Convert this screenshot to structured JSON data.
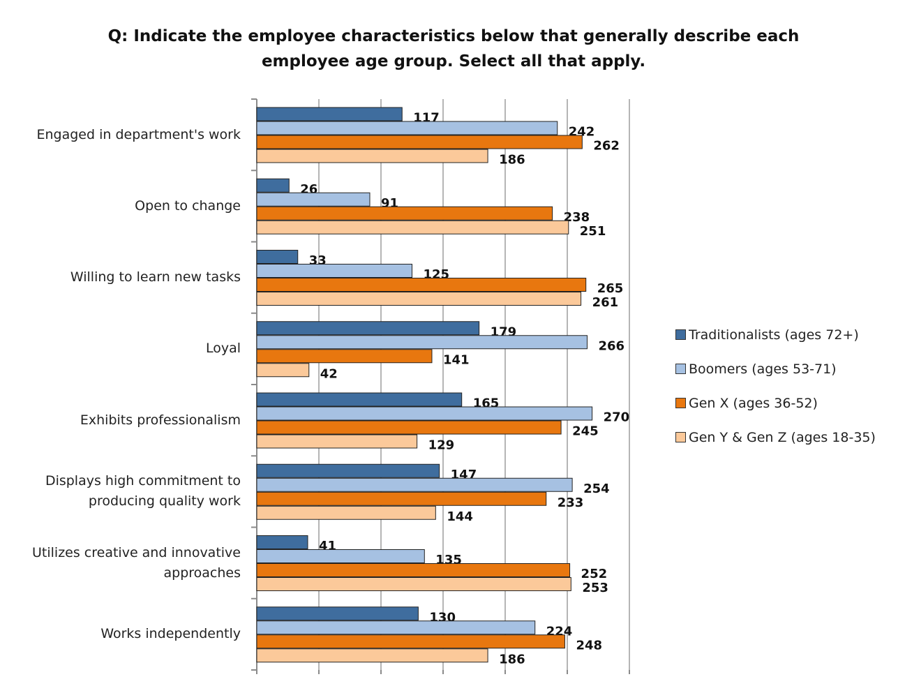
{
  "chart_data": {
    "type": "bar",
    "orientation": "horizontal",
    "title": "Q: Indicate the employee characteristics below that generally describe each employee age group. Select all that apply.",
    "categories": [
      "Engaged in department's work",
      "Open to change",
      "Willing to learn new tasks",
      "Loyal",
      "Exhibits professionalism",
      "Displays high commitment to producing quality work",
      "Utilizes creative and innovative approaches",
      "Works independently"
    ],
    "series": [
      {
        "name": "Traditionalists (ages 72+)",
        "color": "#3f6d9e",
        "values": [
          117,
          26,
          33,
          179,
          165,
          147,
          41,
          130
        ]
      },
      {
        "name": "Boomers (ages 53-71)",
        "color": "#a6c1e2",
        "values": [
          242,
          91,
          125,
          266,
          270,
          254,
          135,
          224
        ]
      },
      {
        "name": "Gen X (ages 36-52)",
        "color": "#e8770f",
        "values": [
          262,
          238,
          265,
          141,
          245,
          233,
          252,
          248
        ]
      },
      {
        "name": "Gen Y & Gen Z  (ages 18-35)",
        "color": "#fbc99a",
        "values": [
          186,
          251,
          261,
          42,
          129,
          144,
          253,
          186
        ]
      }
    ],
    "xlim": [
      0,
      300
    ],
    "grid": true,
    "legend_position": "right",
    "data_labels": true
  }
}
